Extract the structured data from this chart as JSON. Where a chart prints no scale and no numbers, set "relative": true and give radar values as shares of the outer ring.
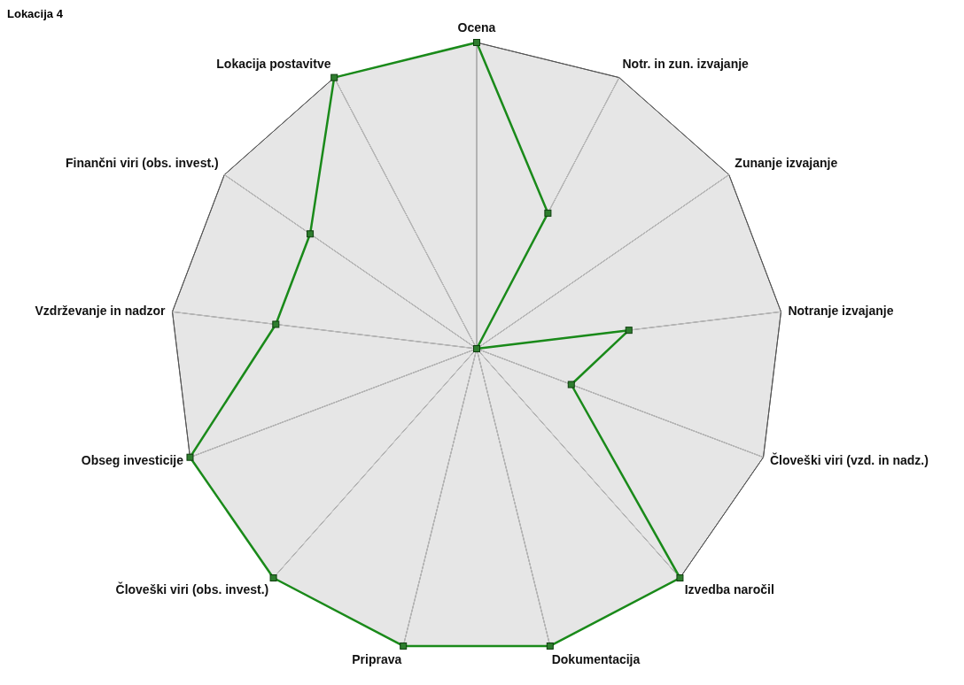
{
  "chart_data": {
    "type": "radar",
    "title": "Lokacija 4",
    "relative": true,
    "grid": true,
    "marker": "square",
    "line_style": "solid",
    "categories": [
      "Ocena",
      "Notr. in zun. izvajanje",
      "Zunanje izvajanje",
      "Notranje izvajanje",
      "Človeški viri (vzd. in nadz.)",
      "Izvedba naročil",
      "Dokumentacija",
      "Priprava",
      "Človeški viri (obs. invest.)",
      "Obseg investicije",
      "Vzdrževanje in nadzor",
      "Finančni viri (obs. invest.)",
      "Lokacija postavitve"
    ],
    "series": [
      {
        "color": "#1a8a1a",
        "values": [
          1,
          0.5,
          0,
          0.5,
          0.33,
          1,
          1,
          1,
          1,
          1,
          0.66,
          0.66,
          1
        ]
      }
    ]
  }
}
